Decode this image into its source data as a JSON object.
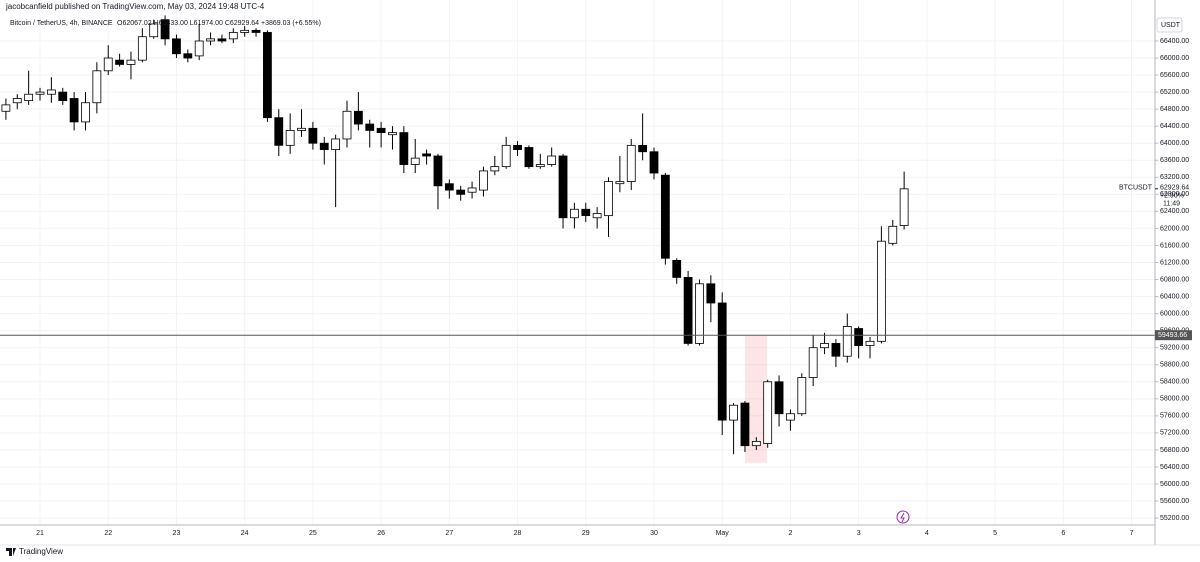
{
  "header": {
    "publisher": "jacobcanfield published on TradingView.com, May 03, 2024 19:48 UTC-4",
    "watermark": "TradingView"
  },
  "chart_data": {
    "type": "candlestick",
    "legend": {
      "symbol": "Bitcoin / TetherUS, 4h, BINANCE",
      "ohlc": "O62067.02 H63333.00 L61974.00 C62929.64 +3869.03 (+6.55%)"
    },
    "axis_unit": "USDT",
    "categories": [
      null,
      null,
      null,
      "21",
      null,
      null,
      null,
      null,
      null,
      "22",
      null,
      null,
      null,
      null,
      null,
      "23",
      null,
      null,
      null,
      null,
      null,
      "24",
      null,
      null,
      null,
      null,
      null,
      "25",
      null,
      null,
      null,
      null,
      null,
      "26",
      null,
      null,
      null,
      null,
      null,
      "27",
      null,
      null,
      null,
      null,
      null,
      "28",
      null,
      null,
      null,
      null,
      null,
      "29",
      null,
      null,
      null,
      null,
      null,
      "30",
      null,
      null,
      null,
      null,
      null,
      "May",
      null,
      null,
      null,
      null,
      null,
      "2",
      null,
      null,
      null,
      null,
      null,
      "3",
      null,
      null,
      null,
      null,
      null,
      "4",
      null,
      null,
      null,
      null,
      null,
      "5",
      null,
      null,
      null,
      null,
      null,
      "6",
      null,
      null,
      null,
      null,
      null,
      "7"
    ],
    "series": [
      {
        "name": "BTCUSDT",
        "up_color": "#ffffff",
        "down_color": "#000000",
        "border_color": "#000000",
        "open": [
          64750,
          64950,
          65000,
          65150,
          65150,
          65200,
          65050,
          64500,
          64950,
          65700,
          65950,
          65850,
          65950,
          66500,
          66900,
          66450,
          66100,
          66050,
          66400,
          66450,
          66450,
          66600,
          66650,
          66600,
          64600,
          63950,
          64300,
          64350,
          64000,
          63850,
          64100,
          64750,
          64450,
          64350,
          64200,
          64250,
          63500,
          63750,
          63700,
          63050,
          62900,
          62850,
          62900,
          63350,
          63450,
          63950,
          63900,
          63450,
          63500,
          63700,
          62250,
          62450,
          62250,
          62300,
          63050,
          63100,
          63950,
          63800,
          63250,
          61250,
          60850,
          59300,
          60700,
          60250,
          57500,
          57900,
          56900,
          56950,
          58400,
          57500,
          57650,
          58500,
          59200,
          59300,
          59000,
          59650,
          59250,
          59350,
          61650,
          62067.02,
          null,
          null,
          null,
          null,
          null,
          null,
          null,
          null,
          null,
          null,
          null,
          null,
          null,
          null,
          null,
          null,
          null,
          null,
          null,
          null
        ],
        "high": [
          65050,
          65150,
          65700,
          65300,
          65550,
          65300,
          65200,
          65200,
          65900,
          66300,
          66100,
          66150,
          66700,
          66900,
          67000,
          66550,
          66200,
          66800,
          66600,
          66550,
          66700,
          66750,
          66700,
          66650,
          64800,
          64700,
          64800,
          64500,
          64150,
          64200,
          65000,
          65200,
          64550,
          64500,
          64400,
          64400,
          64100,
          63850,
          63750,
          63150,
          63000,
          63100,
          63450,
          63700,
          64150,
          64050,
          63950,
          63750,
          63900,
          63750,
          62600,
          62600,
          62500,
          63200,
          63700,
          64100,
          64700,
          63900,
          63300,
          61300,
          61000,
          60800,
          60900,
          60500,
          57900,
          57950,
          57100,
          58450,
          58550,
          57750,
          58600,
          59500,
          59550,
          59400,
          60000,
          59700,
          59450,
          62050,
          62200,
          63333,
          null,
          null,
          null,
          null,
          null,
          null,
          null,
          null,
          null,
          null,
          null,
          null,
          null,
          null,
          null,
          null,
          null,
          null,
          null,
          null
        ],
        "low": [
          64550,
          64800,
          64900,
          65000,
          64950,
          64900,
          64300,
          64300,
          64700,
          65600,
          65800,
          65500,
          65900,
          66450,
          66300,
          66000,
          65900,
          65950,
          66300,
          66350,
          66350,
          66500,
          66500,
          64500,
          63700,
          63750,
          64150,
          63850,
          63500,
          62500,
          63900,
          64300,
          63900,
          63900,
          63850,
          63300,
          63300,
          63500,
          62450,
          62700,
          62650,
          62700,
          62750,
          63250,
          63400,
          63700,
          63400,
          63400,
          63450,
          62000,
          62000,
          62150,
          62000,
          61800,
          62850,
          62900,
          63600,
          63150,
          61150,
          60700,
          59250,
          59250,
          59800,
          57150,
          56700,
          56750,
          56800,
          56850,
          57350,
          57250,
          57600,
          58300,
          59050,
          58750,
          58850,
          58950,
          58950,
          59300,
          61600,
          61974,
          null,
          null,
          null,
          null,
          null,
          null,
          null,
          null,
          null,
          null,
          null,
          null,
          null,
          null,
          null,
          null,
          null,
          null,
          null,
          null
        ],
        "close": [
          64900,
          65050,
          65150,
          65200,
          65250,
          65000,
          64500,
          64950,
          65700,
          66000,
          65850,
          65950,
          66500,
          66800,
          66450,
          66100,
          66000,
          66400,
          66450,
          66400,
          66600,
          66650,
          66600,
          64600,
          63950,
          64300,
          64350,
          64000,
          63850,
          64100,
          64750,
          64450,
          64300,
          64250,
          64250,
          63500,
          63650,
          63700,
          63000,
          62900,
          62800,
          62950,
          63350,
          63450,
          63950,
          63850,
          63450,
          63500,
          63700,
          62250,
          62450,
          62300,
          62350,
          63100,
          63100,
          63950,
          63800,
          63300,
          61300,
          60850,
          59300,
          60700,
          60250,
          57500,
          57850,
          56900,
          57000,
          58400,
          57650,
          57650,
          58500,
          59200,
          59300,
          59000,
          59700,
          59250,
          59350,
          61700,
          62050,
          62929.64,
          null,
          null,
          null,
          null,
          null,
          null,
          null,
          null,
          null,
          null,
          null,
          null,
          null,
          null,
          null,
          null,
          null,
          null,
          null,
          null
        ]
      }
    ],
    "last_change": "+2.90%",
    "countdown": "11:49",
    "price_line": 59493.66,
    "price_line_color": "#555555",
    "ylim": [
      55038,
      67362
    ],
    "yticks": [
      {
        "value": 55200,
        "label": "55200.00"
      },
      {
        "value": 55600,
        "label": "55600.00"
      },
      {
        "value": 56000,
        "label": "56000.00"
      },
      {
        "value": 56400,
        "label": "56400.00"
      },
      {
        "value": 56800,
        "label": "56800.00"
      },
      {
        "value": 57200,
        "label": "57200.00"
      },
      {
        "value": 57600,
        "label": "57600.00"
      },
      {
        "value": 58000,
        "label": "58000.00"
      },
      {
        "value": 58400,
        "label": "58400.00"
      },
      {
        "value": 58800,
        "label": "58800.00"
      },
      {
        "value": 59200,
        "label": "59200.00"
      },
      {
        "value": 59600,
        "label": "59600.00"
      },
      {
        "value": 60000,
        "label": "60000.00"
      },
      {
        "value": 60400,
        "label": "60400.00"
      },
      {
        "value": 60800,
        "label": "60800.00"
      },
      {
        "value": 61200,
        "label": "61200.00"
      },
      {
        "value": 61600,
        "label": "61600.00"
      },
      {
        "value": 62000,
        "label": "62000.00"
      },
      {
        "value": 62400,
        "label": "62400.00"
      },
      {
        "value": 62800,
        "label": "62800.00"
      },
      {
        "value": 63200,
        "label": "63200.00"
      },
      {
        "value": 63600,
        "label": "63600.00"
      },
      {
        "value": 64000,
        "label": "64000.00"
      },
      {
        "value": 64400,
        "label": "64400.00"
      },
      {
        "value": 64800,
        "label": "64800.00"
      },
      {
        "value": 65200,
        "label": "65200.00"
      },
      {
        "value": 65600,
        "label": "65600.00"
      },
      {
        "value": 66000,
        "label": "66000.00"
      },
      {
        "value": 66400,
        "label": "66400.00"
      }
    ],
    "grid": true
  }
}
